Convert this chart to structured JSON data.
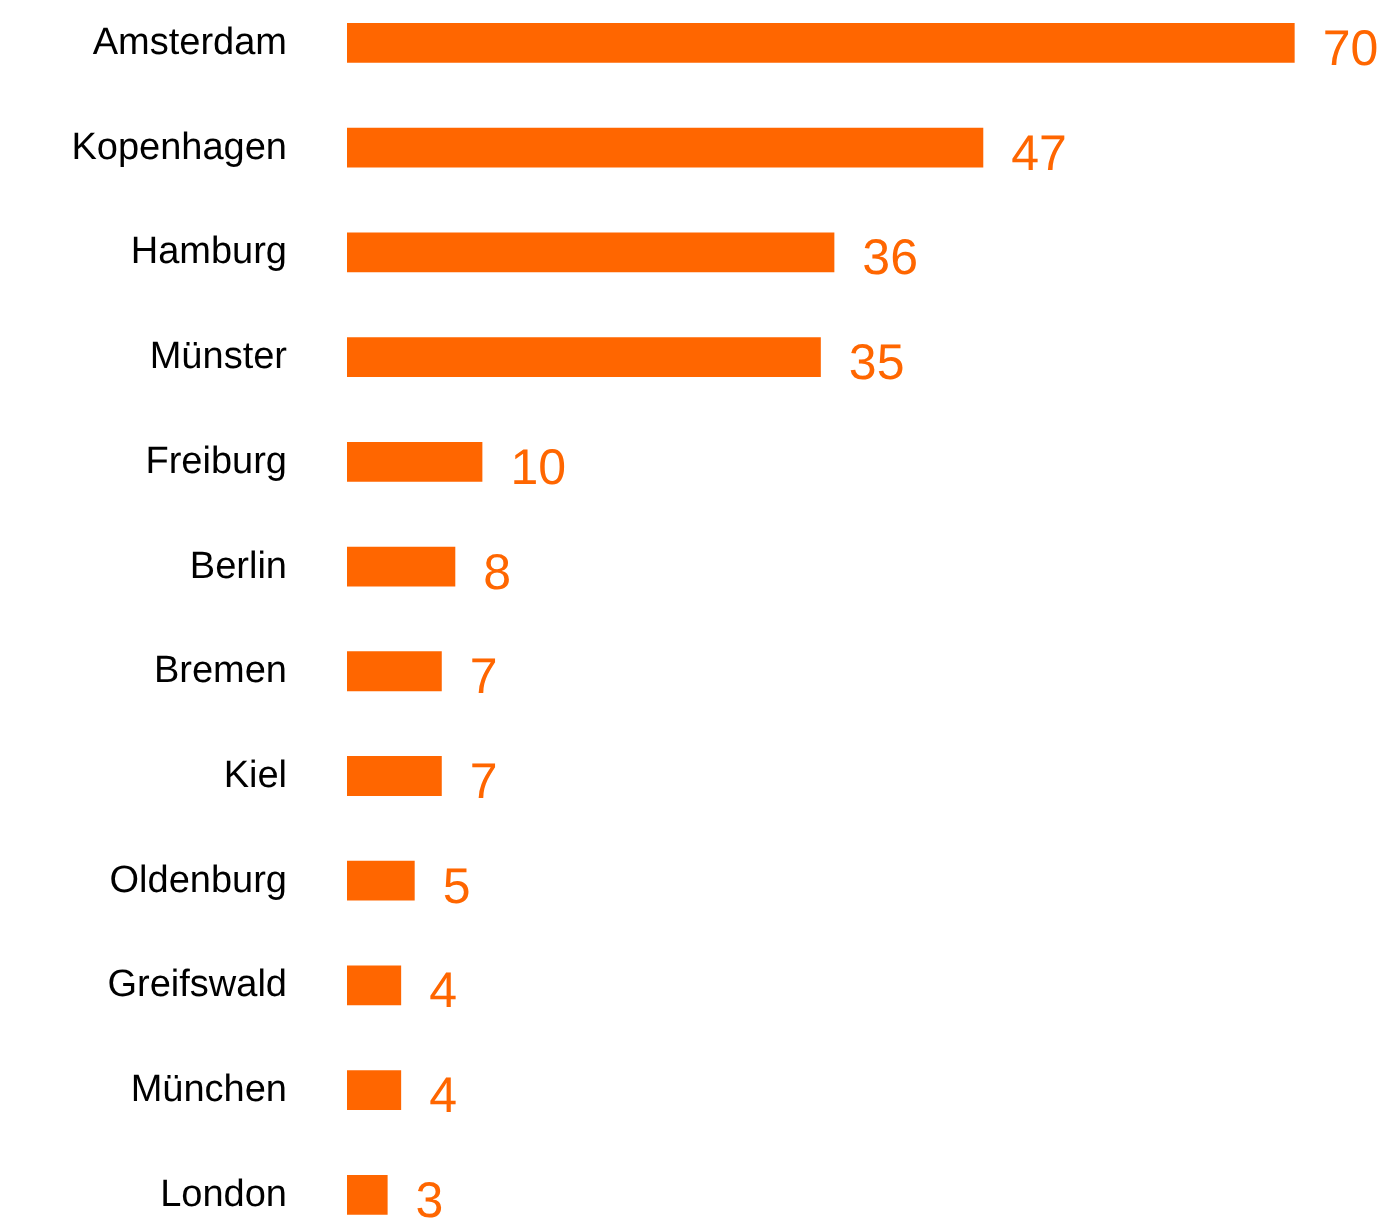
{
  "chart_data": {
    "type": "bar",
    "orientation": "horizontal",
    "categories": [
      "Amsterdam",
      "Kopenhagen",
      "Hamburg",
      "Münster",
      "Freiburg",
      "Berlin",
      "Bremen",
      "Kiel",
      "Oldenburg",
      "Greifswald",
      "München",
      "London"
    ],
    "values": [
      70,
      47,
      36,
      35,
      10,
      8,
      7,
      7,
      5,
      4,
      4,
      3
    ],
    "color": "#ff6600",
    "data_labels": true
  }
}
